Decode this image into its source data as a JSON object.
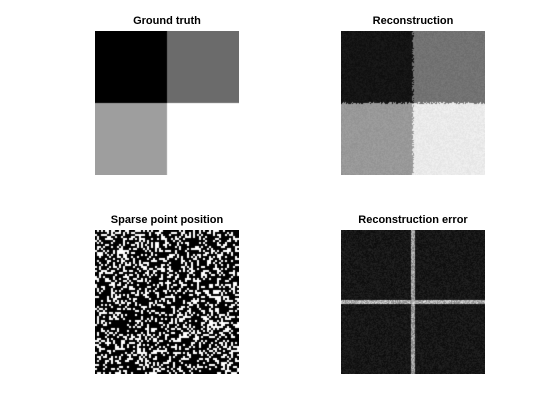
{
  "figure": {
    "panels": [
      {
        "title": "Ground truth"
      },
      {
        "title": "Reconstruction"
      },
      {
        "title": "Sparse point position"
      },
      {
        "title": "Reconstruction error"
      }
    ]
  },
  "image_content": {
    "grid": "2x2 blocks",
    "ground_truth_levels": {
      "top_left": 0.0,
      "top_right": 0.42,
      "bottom_left": 0.62,
      "bottom_right": 1.0
    },
    "reconstruction_levels": {
      "top_left": 0.08,
      "top_right": 0.45,
      "bottom_left": 0.6,
      "bottom_right": 0.92
    },
    "sparse_mask_density": 0.32,
    "error_description": "dark noisy field with bright cross along block boundaries"
  }
}
